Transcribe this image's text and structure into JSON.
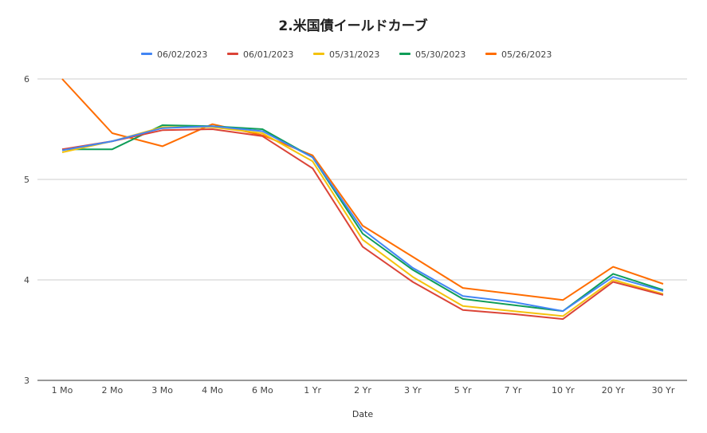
{
  "chart_data": {
    "type": "line",
    "title": "2.米国債イールドカーブ",
    "xlabel": "Date",
    "ylabel": "",
    "ylim": [
      3,
      6
    ],
    "yticks": [
      "3",
      "4",
      "5",
      "6"
    ],
    "grid": true,
    "legend_position": "top",
    "categories": [
      "1 Mo",
      "2 Mo",
      "3 Mo",
      "4 Mo",
      "6 Mo",
      "1 Yr",
      "2 Yr",
      "3 Yr",
      "5 Yr",
      "7 Yr",
      "10 Yr",
      "20 Yr",
      "30 Yr"
    ],
    "series": [
      {
        "name": "06/02/2023",
        "color": "#4285f4",
        "values": [
          5.29,
          5.38,
          5.51,
          5.53,
          5.48,
          5.22,
          4.5,
          4.12,
          3.84,
          3.78,
          3.69,
          4.03,
          3.89
        ]
      },
      {
        "name": "06/01/2023",
        "color": "#db4437",
        "values": [
          5.3,
          5.38,
          5.49,
          5.5,
          5.43,
          5.11,
          4.33,
          3.98,
          3.7,
          3.66,
          3.61,
          3.98,
          3.85
        ]
      },
      {
        "name": "05/31/2023",
        "color": "#f4c20d",
        "values": [
          5.27,
          5.38,
          5.52,
          5.52,
          5.46,
          5.18,
          4.4,
          4.03,
          3.74,
          3.69,
          3.64,
          4.0,
          3.86
        ]
      },
      {
        "name": "05/30/2023",
        "color": "#0f9d58",
        "values": [
          5.3,
          5.3,
          5.54,
          5.53,
          5.5,
          5.22,
          4.46,
          4.1,
          3.81,
          3.75,
          3.69,
          4.06,
          3.9
        ]
      },
      {
        "name": "05/26/2023",
        "color": "#ff6d00",
        "values": [
          6.0,
          5.46,
          5.33,
          5.55,
          5.44,
          5.24,
          4.54,
          4.23,
          3.92,
          3.86,
          3.8,
          4.13,
          3.96
        ]
      }
    ]
  }
}
